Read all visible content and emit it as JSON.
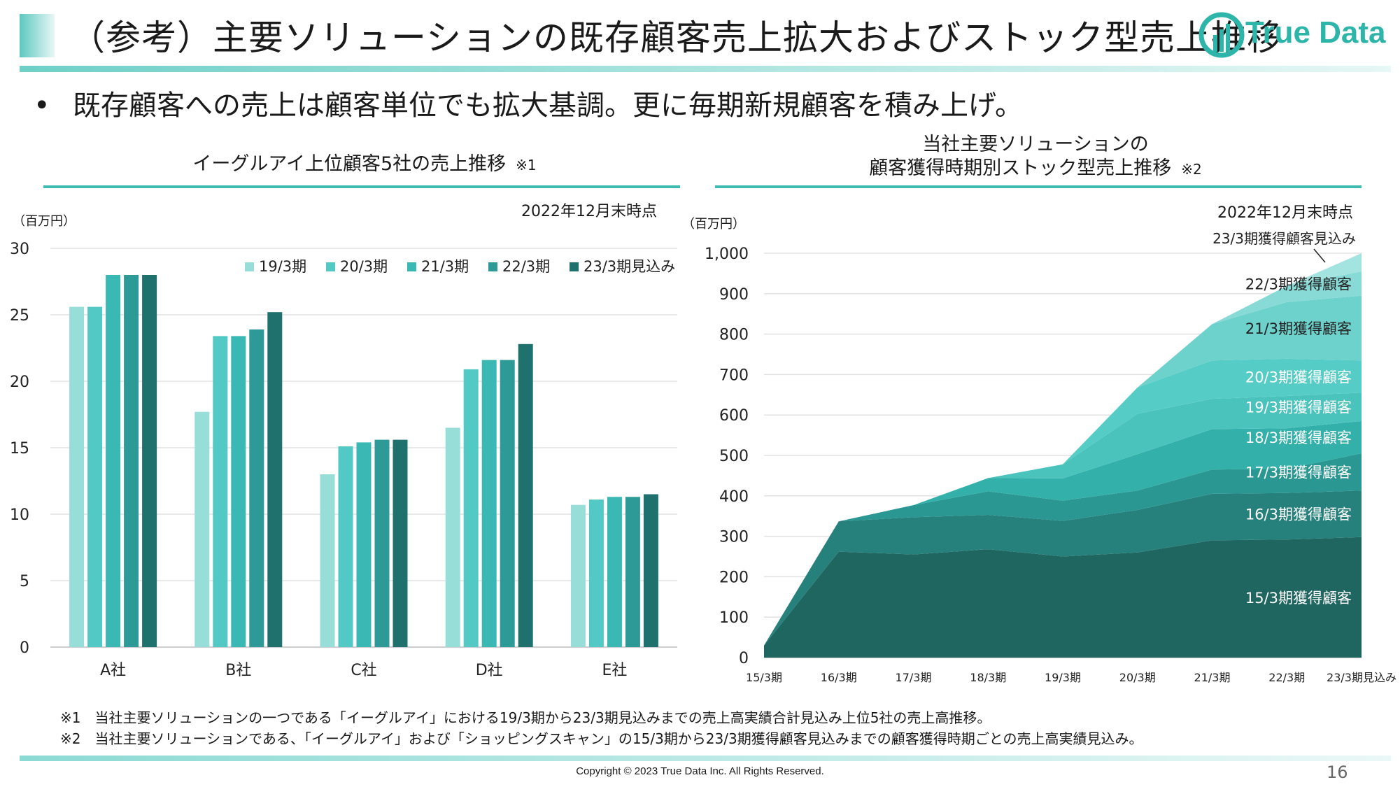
{
  "header": {
    "title": "（参考）主要ソリューションの既存顧客売上拡大およびストック型売上推移",
    "logo_text": "True Data"
  },
  "bullet": "既存顧客への売上は顧客単位でも拡大基調。更に毎期新規顧客を積み上げ。",
  "colors": {
    "accent": "#3dbbb0",
    "bar_series": [
      "#97ddd8",
      "#52c9c4",
      "#3ab9b4",
      "#2e9a97",
      "#1f716d"
    ],
    "area_layers": [
      "#1f6661",
      "#26807b",
      "#2a9792",
      "#33b0aa",
      "#4bc3bd",
      "#56ccc6",
      "#6dd1cc",
      "#88dad6",
      "#a3e4e0"
    ]
  },
  "left_panel": {
    "title": "イーグルアイ上位顧客5社の売上推移",
    "note": "※1",
    "as_of": "2022年12月末時点",
    "unit": "（百万円）"
  },
  "right_panel": {
    "title_line1": "当社主要ソリューションの",
    "title_line2": "顧客獲得時期別ストック型売上推移",
    "note": "※2",
    "as_of": "2022年12月末時点",
    "unit": "（百万円）"
  },
  "chart_data": [
    {
      "type": "bar",
      "categories": [
        "A社",
        "B社",
        "C社",
        "D社",
        "E社"
      ],
      "series": [
        {
          "name": "19/3期",
          "values": [
            25.6,
            17.7,
            13.0,
            16.5,
            10.7
          ]
        },
        {
          "name": "20/3期",
          "values": [
            25.6,
            23.4,
            15.1,
            20.9,
            11.1
          ]
        },
        {
          "name": "21/3期",
          "values": [
            28.0,
            23.4,
            15.4,
            21.6,
            11.3
          ]
        },
        {
          "name": "22/3期",
          "values": [
            28.0,
            23.9,
            15.6,
            21.6,
            11.3
          ]
        },
        {
          "name": "23/3期見込み",
          "values": [
            28.0,
            25.2,
            15.6,
            22.8,
            11.5
          ]
        }
      ],
      "ylim": [
        0,
        30
      ],
      "yticks": [
        0,
        5,
        10,
        15,
        20,
        25,
        30
      ],
      "ylabel": "（百万円）",
      "legend": "top-right",
      "grid": true
    },
    {
      "type": "area",
      "stacked": true,
      "x": [
        "15/3期",
        "16/3期",
        "17/3期",
        "18/3期",
        "19/3期",
        "20/3期",
        "21/3期",
        "22/3期",
        "23/3期見込み"
      ],
      "series": [
        {
          "name": "15/3期獲得顧客",
          "values": [
            30,
            262,
            255,
            268,
            250,
            260,
            290,
            292,
            298
          ]
        },
        {
          "name": "16/3期獲得顧客",
          "values": [
            null,
            75,
            92,
            85,
            88,
            105,
            115,
            115,
            115
          ]
        },
        {
          "name": "17/3期獲得顧客",
          "values": [
            null,
            null,
            30,
            58,
            50,
            48,
            60,
            60,
            92
          ]
        },
        {
          "name": "18/3期獲得顧客",
          "values": [
            null,
            null,
            null,
            33,
            55,
            90,
            100,
            100,
            80
          ]
        },
        {
          "name": "19/3期獲得顧客",
          "values": [
            null,
            null,
            null,
            null,
            35,
            100,
            75,
            80,
            70
          ]
        },
        {
          "name": "20/3期獲得顧客",
          "values": [
            null,
            null,
            null,
            null,
            null,
            65,
            95,
            92,
            80
          ]
        },
        {
          "name": "21/3期獲得顧客",
          "values": [
            null,
            null,
            null,
            null,
            null,
            null,
            90,
            140,
            160
          ]
        },
        {
          "name": "22/3期獲得顧客",
          "values": [
            null,
            null,
            null,
            null,
            null,
            null,
            null,
            40,
            60
          ]
        },
        {
          "name": "23/3期獲得顧客見込み",
          "values": [
            null,
            null,
            null,
            null,
            null,
            null,
            null,
            null,
            45
          ]
        }
      ],
      "ylim": [
        0,
        1000
      ],
      "yticks": [
        "0",
        "100",
        "200",
        "300",
        "400",
        "500",
        "600",
        "700",
        "800",
        "900",
        "1,000"
      ],
      "ylabel": "（百万円）",
      "grid": true
    }
  ],
  "footnotes": [
    "※1　当社主要ソリューションの一つである「イーグルアイ」における19/3期から23/3期見込みまでの売上高実績合計見込み上位5社の売上高推移。",
    "※2　当社主要ソリューションである、「イーグルアイ」および「ショッピングスキャン」の15/3期から23/3期獲得顧客見込みまでの顧客獲得時期ごとの売上高実績見込み。"
  ],
  "copyright": "Copyright © 2023 True Data Inc. All Rights Reserved.",
  "page_number": "16"
}
